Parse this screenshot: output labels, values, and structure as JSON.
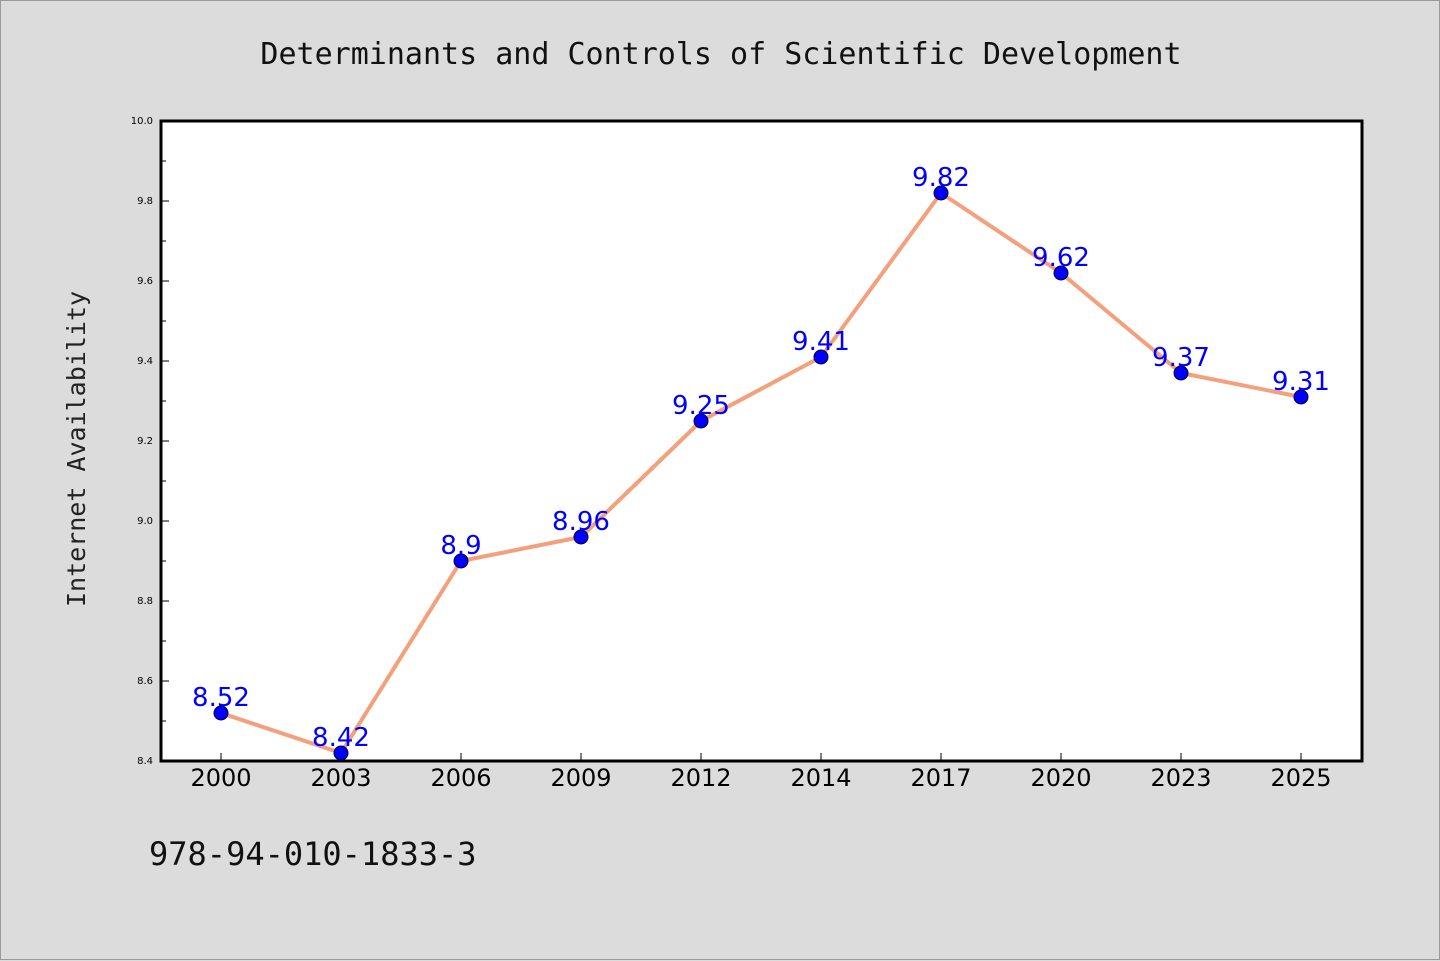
{
  "chart_data": {
    "type": "line",
    "title": "Determinants and Controls of Scientific Development",
    "xlabel": "",
    "ylabel": "Internet Availability",
    "categories": [
      "2000",
      "2003",
      "2006",
      "2009",
      "2012",
      "2014",
      "2017",
      "2020",
      "2023",
      "2025"
    ],
    "series": [
      {
        "values": [
          8.52,
          8.42,
          8.9,
          8.96,
          9.25,
          9.41,
          9.82,
          9.62,
          9.37,
          9.31
        ],
        "data_labels": [
          "8.52",
          "8.42",
          "8.9",
          "8.96",
          "9.25",
          "9.41",
          "9.82",
          "9.62",
          "9.37",
          "9.31"
        ],
        "line_color": "#f4a07c",
        "marker_color": "#0000ff"
      }
    ],
    "ylim": [
      8.4,
      10.0
    ],
    "yticks": [
      "8.4",
      "8.6",
      "8.8",
      "9.0",
      "9.2",
      "9.4",
      "9.6",
      "9.8",
      "10.0"
    ],
    "grid": false,
    "label_color": "#0000ff"
  },
  "footer": {
    "isbn": "978-94-010-1833-3"
  },
  "colors": {
    "background": "#dcdcdc",
    "plot_area": "#ffffff"
  }
}
